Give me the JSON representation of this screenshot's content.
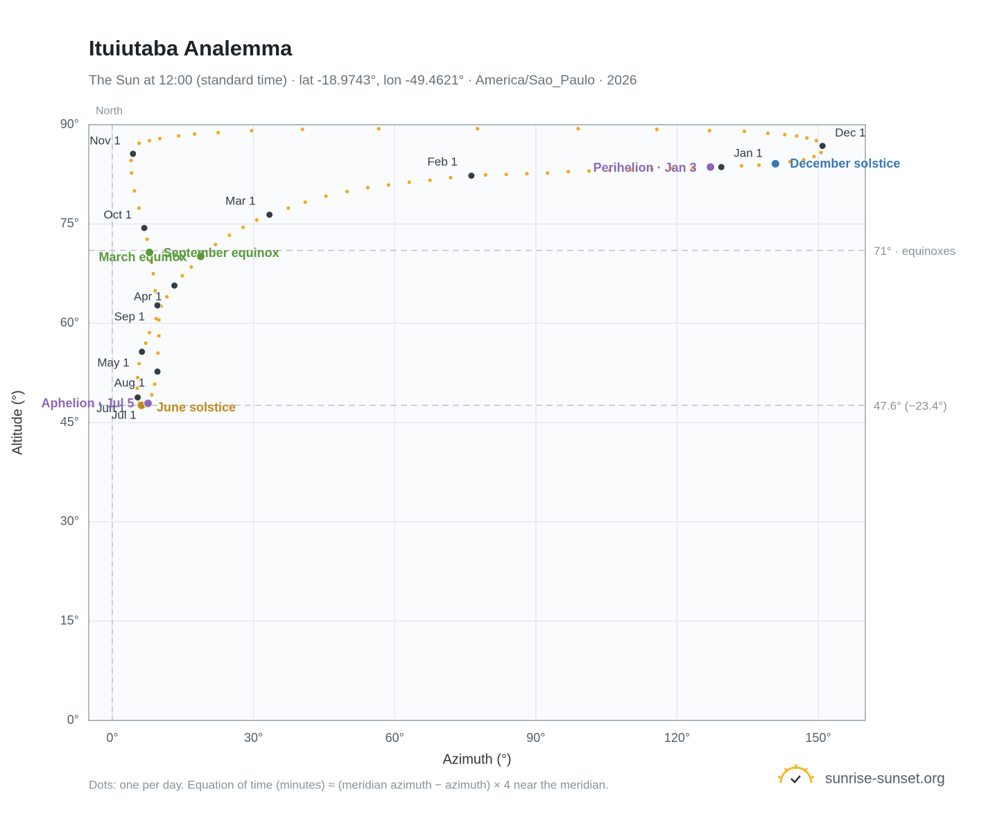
{
  "chart_data": {
    "type": "scatter",
    "title": "Ituiutaba Analemma",
    "subtitle": "The Sun at 12:00 (standard time) · lat -18.9743°, lon -49.4621° · America/Sao_Paulo · 2026",
    "x_label": "Azimuth (°)",
    "y_label": "Altitude (°)",
    "xlim": [
      -5,
      160
    ],
    "ylim": [
      0,
      90
    ],
    "xticks": [
      {
        "value": 0,
        "label": "0°"
      },
      {
        "value": 30,
        "label": "30°"
      },
      {
        "value": 60,
        "label": "60°"
      },
      {
        "value": 90,
        "label": "90°"
      },
      {
        "value": 120,
        "label": "120°"
      },
      {
        "value": 150,
        "label": "150°"
      }
    ],
    "yticks": [
      {
        "value": 0,
        "label": "0°"
      },
      {
        "value": 15,
        "label": "15°"
      },
      {
        "value": 30,
        "label": "30°"
      },
      {
        "value": 45,
        "label": "45°"
      },
      {
        "value": 60,
        "label": "60°"
      },
      {
        "value": 75,
        "label": "75°"
      },
      {
        "value": 90,
        "label": "90°"
      }
    ],
    "grid": true,
    "series": [
      {
        "color": "#f5a623",
        "x": [
          129.4,
          127.1,
          123.4,
          119.0,
          114.6,
          110.1,
          105.7,
          101.3,
          96.9,
          92.5,
          88.1,
          83.7,
          79.3,
          76.3,
          71.9,
          67.5,
          63.1,
          58.7,
          54.3,
          49.9,
          45.4,
          41.0,
          37.4,
          33.4,
          30.7,
          27.8,
          24.9,
          21.9,
          18.8,
          16.8,
          14.9,
          13.2,
          11.6,
          10.4,
          9.3,
          7.9,
          7.1,
          6.3,
          5.7,
          5.4,
          5.3,
          5.4,
          5.7,
          6.2,
          6.9,
          7.6,
          8.4,
          9.0,
          9.6,
          9.7,
          9.9,
          9.9,
          9.6,
          9.1,
          8.7,
          8.2,
          7.9,
          7.4,
          6.8,
          5.7,
          4.7,
          4.1,
          4.0,
          4.4,
          5.7,
          7.9,
          10.1,
          14.1,
          17.5,
          22.5,
          29.6,
          40.4,
          56.6,
          77.6,
          99.0,
          115.7,
          126.9,
          134.3,
          139.3,
          142.9,
          145.4,
          147.6,
          149.6,
          150.9,
          150.6,
          149.1,
          146.9,
          144.0,
          140.9,
          137.4,
          133.7
        ],
        "values": [
          83.6,
          83.6,
          83.5,
          83.4,
          83.3,
          83.2,
          83.1,
          83.0,
          82.9,
          82.7,
          82.6,
          82.5,
          82.4,
          82.3,
          82.0,
          81.6,
          81.3,
          80.9,
          80.5,
          79.9,
          79.2,
          78.3,
          77.4,
          76.4,
          75.6,
          74.5,
          73.3,
          71.9,
          70.1,
          68.5,
          67.2,
          65.7,
          64.0,
          62.6,
          60.7,
          58.6,
          57.0,
          55.7,
          53.9,
          51.8,
          50.2,
          48.8,
          48.0,
          47.6,
          47.7,
          47.9,
          49.2,
          50.8,
          52.7,
          55.5,
          58.1,
          60.5,
          62.7,
          64.9,
          67.5,
          69.3,
          70.7,
          72.7,
          74.4,
          77.4,
          80.0,
          82.7,
          84.6,
          85.6,
          87.2,
          87.6,
          87.9,
          88.3,
          88.6,
          88.8,
          89.1,
          89.3,
          89.4,
          89.4,
          89.4,
          89.3,
          89.1,
          89.0,
          88.7,
          88.5,
          88.3,
          88.0,
          87.6,
          86.8,
          85.8,
          85.2,
          84.7,
          84.4,
          84.1,
          83.9,
          83.8
        ]
      }
    ],
    "markers": [
      {
        "label": "Jan 1",
        "x": 129.4,
        "y": 83.6,
        "color": "#333d47"
      },
      {
        "label": "Feb 1",
        "x": 76.3,
        "y": 82.3,
        "color": "#333d47"
      },
      {
        "label": "Mar 1",
        "x": 33.4,
        "y": 76.4,
        "color": "#333d47"
      },
      {
        "label": "Apr 1",
        "x": 13.2,
        "y": 65.7,
        "color": "#333d47"
      },
      {
        "label": "May 1",
        "x": 6.3,
        "y": 55.7,
        "color": "#333d47"
      },
      {
        "label": "Jun 1",
        "x": 5.4,
        "y": 48.8,
        "color": "#333d47"
      },
      {
        "label": "Jul 1",
        "x": 6.9,
        "y": 47.7,
        "color": "#333d47"
      },
      {
        "label": "Aug 1",
        "x": 9.6,
        "y": 52.7,
        "color": "#333d47"
      },
      {
        "label": "Sep 1",
        "x": 9.6,
        "y": 62.7,
        "color": "#333d47"
      },
      {
        "label": "Oct 1",
        "x": 6.8,
        "y": 74.4,
        "color": "#333d47"
      },
      {
        "label": "Nov 1",
        "x": 4.4,
        "y": 85.6,
        "color": "#333d47"
      },
      {
        "label": "Dec 1",
        "x": 150.9,
        "y": 86.8,
        "color": "#333d47"
      },
      {
        "label": "March equinox",
        "x": 18.8,
        "y": 70.1,
        "color": "#5a9a3a"
      },
      {
        "label": "September equinox",
        "x": 7.9,
        "y": 70.7,
        "color": "#5a9a3a"
      },
      {
        "label": "June solstice",
        "x": 6.2,
        "y": 47.6,
        "color": "#c28a1a"
      },
      {
        "label": "December solstice",
        "x": 140.9,
        "y": 84.1,
        "color": "#3a78b5"
      },
      {
        "label": "Aphelion · Jul 5",
        "x": 7.6,
        "y": 47.9,
        "color": "#8e67b5"
      },
      {
        "label": "Perihelion · Jan 3",
        "x": 127.1,
        "y": 83.6,
        "color": "#8e67b5"
      }
    ],
    "reference_lines": [
      {
        "value": 71,
        "label": "71° · equinoxes"
      },
      {
        "value": 47.6,
        "label": "47.6° (−23.4°)"
      }
    ],
    "vertical_reference": {
      "value": 0,
      "label": "North"
    },
    "footnote": "Dots: one per day. Equation of time (minutes) ≈ (meridian azimuth − azimuth) × 4 near the meridian.",
    "brand": "sunrise-sunset.org"
  }
}
